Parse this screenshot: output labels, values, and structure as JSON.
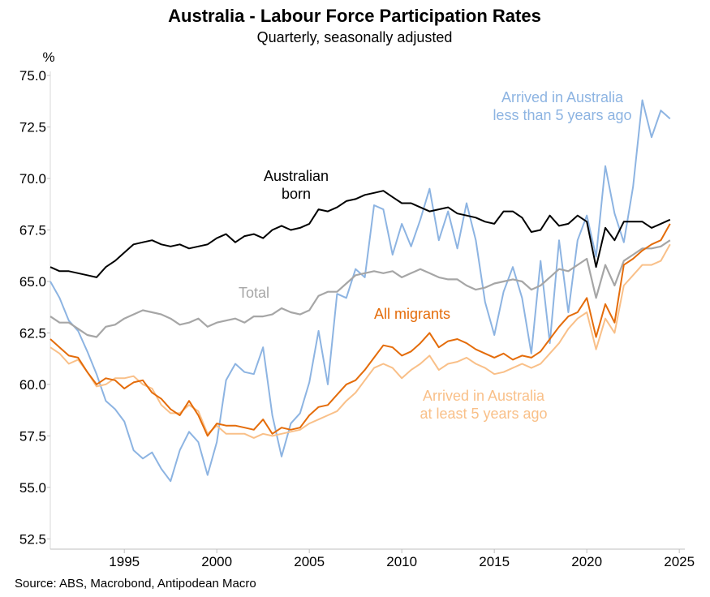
{
  "chart_data": {
    "type": "line",
    "title": "Australia - Labour Force Participation Rates",
    "subtitle": "Quarterly, seasonally adjusted",
    "y_unit": "%",
    "source": "Source: ABS, Macrobond, Antipodean Macro",
    "x": [
      1991,
      1991.5,
      1992,
      1992.5,
      1993,
      1993.5,
      1994,
      1994.5,
      1995,
      1995.5,
      1996,
      1996.5,
      1997,
      1997.5,
      1998,
      1998.5,
      1999,
      1999.5,
      2000,
      2000.5,
      2001,
      2001.5,
      2002,
      2002.5,
      2003,
      2003.5,
      2004,
      2004.5,
      2005,
      2005.5,
      2006,
      2006.5,
      2007,
      2007.5,
      2008,
      2008.5,
      2009,
      2009.5,
      2010,
      2010.5,
      2011,
      2011.5,
      2012,
      2012.5,
      2013,
      2013.5,
      2014,
      2014.5,
      2015,
      2015.5,
      2016,
      2016.5,
      2017,
      2017.5,
      2018,
      2018.5,
      2019,
      2019.5,
      2020,
      2020.5,
      2021,
      2021.5,
      2022,
      2022.5,
      2023,
      2023.5,
      2024,
      2024.5
    ],
    "xlim": [
      1991,
      2025.3
    ],
    "xticks": [
      1995,
      2000,
      2005,
      2010,
      2015,
      2020,
      2025
    ],
    "ylim": [
      52.0,
      75.2
    ],
    "yticks": [
      52.5,
      {
        "value": 55,
        "label": "55.0"
      },
      57.5,
      {
        "value": 60,
        "label": "60.0"
      },
      62.5,
      {
        "value": 65,
        "label": "65.0"
      },
      67.5,
      {
        "value": 70,
        "label": "70.0"
      },
      72.5,
      {
        "value": 75,
        "label": "75.0"
      }
    ],
    "series": [
      {
        "name": [
          "Arrived in Australia",
          "less than 5 years ago"
        ],
        "color": "#8db4e2",
        "values": [
          65.0,
          64.2,
          63.1,
          62.6,
          61.6,
          60.5,
          59.2,
          58.8,
          58.2,
          56.8,
          56.4,
          56.7,
          55.9,
          55.3,
          56.8,
          57.7,
          57.2,
          55.6,
          57.2,
          60.2,
          61.0,
          60.6,
          60.5,
          61.8,
          58.5,
          56.5,
          58.1,
          58.6,
          60.1,
          62.6,
          60.0,
          64.4,
          64.2,
          65.6,
          65.2,
          68.7,
          68.5,
          66.3,
          67.8,
          66.7,
          68.0,
          69.5,
          67.0,
          68.4,
          66.6,
          68.8,
          67.0,
          64.0,
          62.4,
          64.5,
          65.7,
          64.2,
          61.5,
          66.0,
          62.0,
          67.0,
          63.5,
          67.0,
          68.2,
          66.2,
          70.6,
          68.3,
          66.9,
          69.6,
          73.8,
          72.0,
          73.3,
          72.9
        ]
      },
      {
        "name": [
          "Total"
        ],
        "color": "#a6a6a6",
        "values": [
          63.3,
          63.0,
          63.0,
          62.7,
          62.4,
          62.3,
          62.8,
          62.9,
          63.2,
          63.4,
          63.6,
          63.5,
          63.4,
          63.2,
          62.9,
          63.0,
          63.2,
          62.8,
          63.0,
          63.1,
          63.2,
          63.0,
          63.3,
          63.3,
          63.4,
          63.7,
          63.5,
          63.4,
          63.6,
          64.3,
          64.5,
          64.5,
          64.9,
          65.3,
          65.4,
          65.5,
          65.4,
          65.5,
          65.2,
          65.4,
          65.6,
          65.4,
          65.2,
          65.1,
          65.1,
          64.8,
          64.6,
          64.7,
          64.9,
          65.0,
          65.1,
          65.0,
          64.6,
          64.8,
          65.2,
          65.6,
          65.5,
          65.8,
          66.1,
          64.2,
          65.8,
          64.8,
          66.0,
          66.3,
          66.6,
          66.6,
          66.7,
          67.0
        ]
      },
      {
        "name": [
          "Arrived in Australia",
          "at least 5 years ago"
        ],
        "color": "#f9c089",
        "values": [
          61.8,
          61.5,
          61.0,
          61.2,
          60.6,
          59.9,
          60.0,
          60.3,
          60.3,
          60.4,
          60.0,
          59.8,
          59.0,
          58.6,
          58.6,
          59.0,
          58.7,
          57.6,
          58.0,
          57.6,
          57.6,
          57.6,
          57.4,
          57.6,
          57.5,
          57.6,
          57.7,
          57.8,
          58.1,
          58.3,
          58.5,
          58.7,
          59.2,
          59.6,
          60.2,
          60.8,
          61.0,
          60.8,
          60.3,
          60.7,
          61.0,
          61.4,
          60.7,
          61.0,
          61.1,
          61.3,
          61.0,
          60.8,
          60.5,
          60.6,
          60.8,
          61.0,
          60.8,
          61.0,
          61.5,
          62.0,
          62.7,
          63.2,
          63.5,
          61.7,
          63.2,
          62.5,
          64.8,
          65.3,
          65.8,
          65.8,
          66.0,
          66.8
        ]
      },
      {
        "name": [
          "All migrants"
        ],
        "color": "#e46c0a",
        "values": [
          62.2,
          61.8,
          61.4,
          61.3,
          60.6,
          60.0,
          60.3,
          60.2,
          59.8,
          60.1,
          60.2,
          59.6,
          59.3,
          58.8,
          58.5,
          59.2,
          58.5,
          57.5,
          58.1,
          58.0,
          58.0,
          57.9,
          57.8,
          58.3,
          57.6,
          57.9,
          57.8,
          57.9,
          58.5,
          58.9,
          59.0,
          59.5,
          60.0,
          60.2,
          60.7,
          61.3,
          61.9,
          61.8,
          61.4,
          61.6,
          62.0,
          62.5,
          61.8,
          62.1,
          62.2,
          62.0,
          61.7,
          61.5,
          61.3,
          61.5,
          61.2,
          61.4,
          61.3,
          61.6,
          62.2,
          62.8,
          63.3,
          63.5,
          64.2,
          62.3,
          63.9,
          63.0,
          65.8,
          66.1,
          66.5,
          66.8,
          67.0,
          67.8
        ]
      },
      {
        "name": [
          "Australian",
          "born"
        ],
        "color": "#000000",
        "values": [
          65.7,
          65.5,
          65.5,
          65.4,
          65.3,
          65.2,
          65.7,
          66.0,
          66.4,
          66.8,
          66.9,
          67.0,
          66.8,
          66.7,
          66.8,
          66.6,
          66.7,
          66.8,
          67.1,
          67.3,
          66.9,
          67.2,
          67.3,
          67.1,
          67.5,
          67.7,
          67.5,
          67.6,
          67.8,
          68.5,
          68.4,
          68.6,
          68.9,
          69.0,
          69.2,
          69.3,
          69.4,
          69.1,
          68.8,
          68.8,
          68.6,
          68.4,
          68.5,
          68.6,
          68.3,
          68.2,
          68.1,
          67.9,
          67.8,
          68.4,
          68.4,
          68.1,
          67.4,
          67.5,
          68.2,
          67.7,
          67.8,
          68.2,
          67.9,
          65.7,
          67.6,
          67.0,
          67.9,
          67.9,
          67.9,
          67.6,
          67.8,
          68.0
        ]
      }
    ]
  }
}
